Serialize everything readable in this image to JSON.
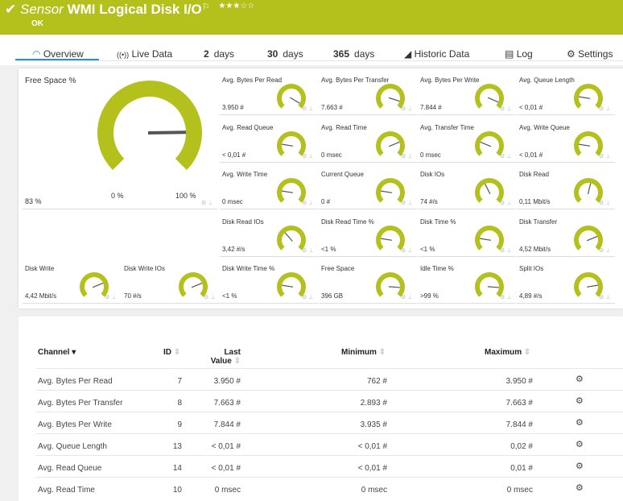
{
  "header": {
    "prefix": "Sensor",
    "title": "WMI Logical Disk I/O",
    "status": "OK",
    "stars": "★★★☆☆",
    "accent": "#b4c11d"
  },
  "tabs": [
    {
      "label": "Overview"
    },
    {
      "label": "Live Data"
    },
    {
      "num": "2",
      "label": "days"
    },
    {
      "num": "30",
      "label": "days"
    },
    {
      "num": "365",
      "label": "days"
    },
    {
      "label": "Historic Data"
    },
    {
      "label": "Log"
    },
    {
      "label": "Settings"
    }
  ],
  "big_gauge": {
    "name": "Free Space %",
    "value": "83 %",
    "min": "0 %",
    "max": "100 %",
    "level": 0.83
  },
  "gauges": [
    {
      "name": "Avg. Bytes Per Read",
      "value": "3.950 #",
      "level": 0.95
    },
    {
      "name": "Avg. Bytes Per Transfer",
      "value": "7.663 #",
      "level": 0.9
    },
    {
      "name": "Avg. Bytes Per Write",
      "value": "7.844 #",
      "level": 0.92
    },
    {
      "name": "Avg. Queue Length",
      "value": "< 0,01 #",
      "level": 0.2
    },
    {
      "name": "Avg. Read Queue",
      "value": "< 0,01 #",
      "level": 0.2
    },
    {
      "name": "Avg. Read Time",
      "value": "0 msec",
      "level": 0.75
    },
    {
      "name": "Avg. Transfer Time",
      "value": "0 msec",
      "level": 0.25
    },
    {
      "name": "Avg. Write Queue",
      "value": "< 0,01 #",
      "level": 0.2
    },
    {
      "name": "Avg. Write Time",
      "value": "0 msec",
      "level": 0.2
    },
    {
      "name": "Current Queue",
      "value": "0 #",
      "level": 0.2
    },
    {
      "name": "Disk IOs",
      "value": "74 #/s",
      "level": 0.4
    },
    {
      "name": "Disk Read",
      "value": "0,11 Mbit/s",
      "level": 0.55
    },
    {
      "name": "Disk Read IOs",
      "value": "3,42 #/s",
      "level": 0.35
    },
    {
      "name": "Disk Read Time %",
      "value": "<1 %",
      "level": 0.2
    },
    {
      "name": "Disk Time %",
      "value": "<1 %",
      "level": 0.2
    },
    {
      "name": "Disk Transfer",
      "value": "4,52 Mbit/s",
      "level": 0.75
    },
    {
      "name": "Disk Write",
      "value": "4,42 Mbit/s",
      "level": 0.75
    },
    {
      "name": "Disk Write IOs",
      "value": "70 #/s",
      "level": 0.75
    },
    {
      "name": "Disk Write Time %",
      "value": "<1 %",
      "level": 0.2
    },
    {
      "name": "Free Space",
      "value": "396 GB",
      "level": 0.85
    },
    {
      "name": "Idle Time %",
      "value": ">99 %",
      "level": 0.85
    },
    {
      "name": "Split IOs",
      "value": "4,89 #/s",
      "level": 0.8
    }
  ],
  "table": {
    "headers": {
      "channel": "Channel",
      "id": "ID",
      "last1": "Last",
      "last2": "Value",
      "minimum": "Minimum",
      "maximum": "Maximum"
    },
    "rows": [
      {
        "channel": "Avg. Bytes Per Read",
        "id": "7",
        "last": "3.950 #",
        "min": "762 #",
        "max": "3.950 #"
      },
      {
        "channel": "Avg. Bytes Per Transfer",
        "id": "8",
        "last": "7.663 #",
        "min": "2.893 #",
        "max": "7.663 #"
      },
      {
        "channel": "Avg. Bytes Per Write",
        "id": "9",
        "last": "7.844 #",
        "min": "3.935 #",
        "max": "7.844 #"
      },
      {
        "channel": "Avg. Queue Length",
        "id": "13",
        "last": "< 0,01 #",
        "min": "< 0,01 #",
        "max": "0,02 #"
      },
      {
        "channel": "Avg. Read Queue",
        "id": "14",
        "last": "< 0,01 #",
        "min": "< 0,01 #",
        "max": "0,01 #"
      },
      {
        "channel": "Avg. Read Time",
        "id": "10",
        "last": "0 msec",
        "min": "0 msec",
        "max": "0 msec"
      }
    ]
  }
}
